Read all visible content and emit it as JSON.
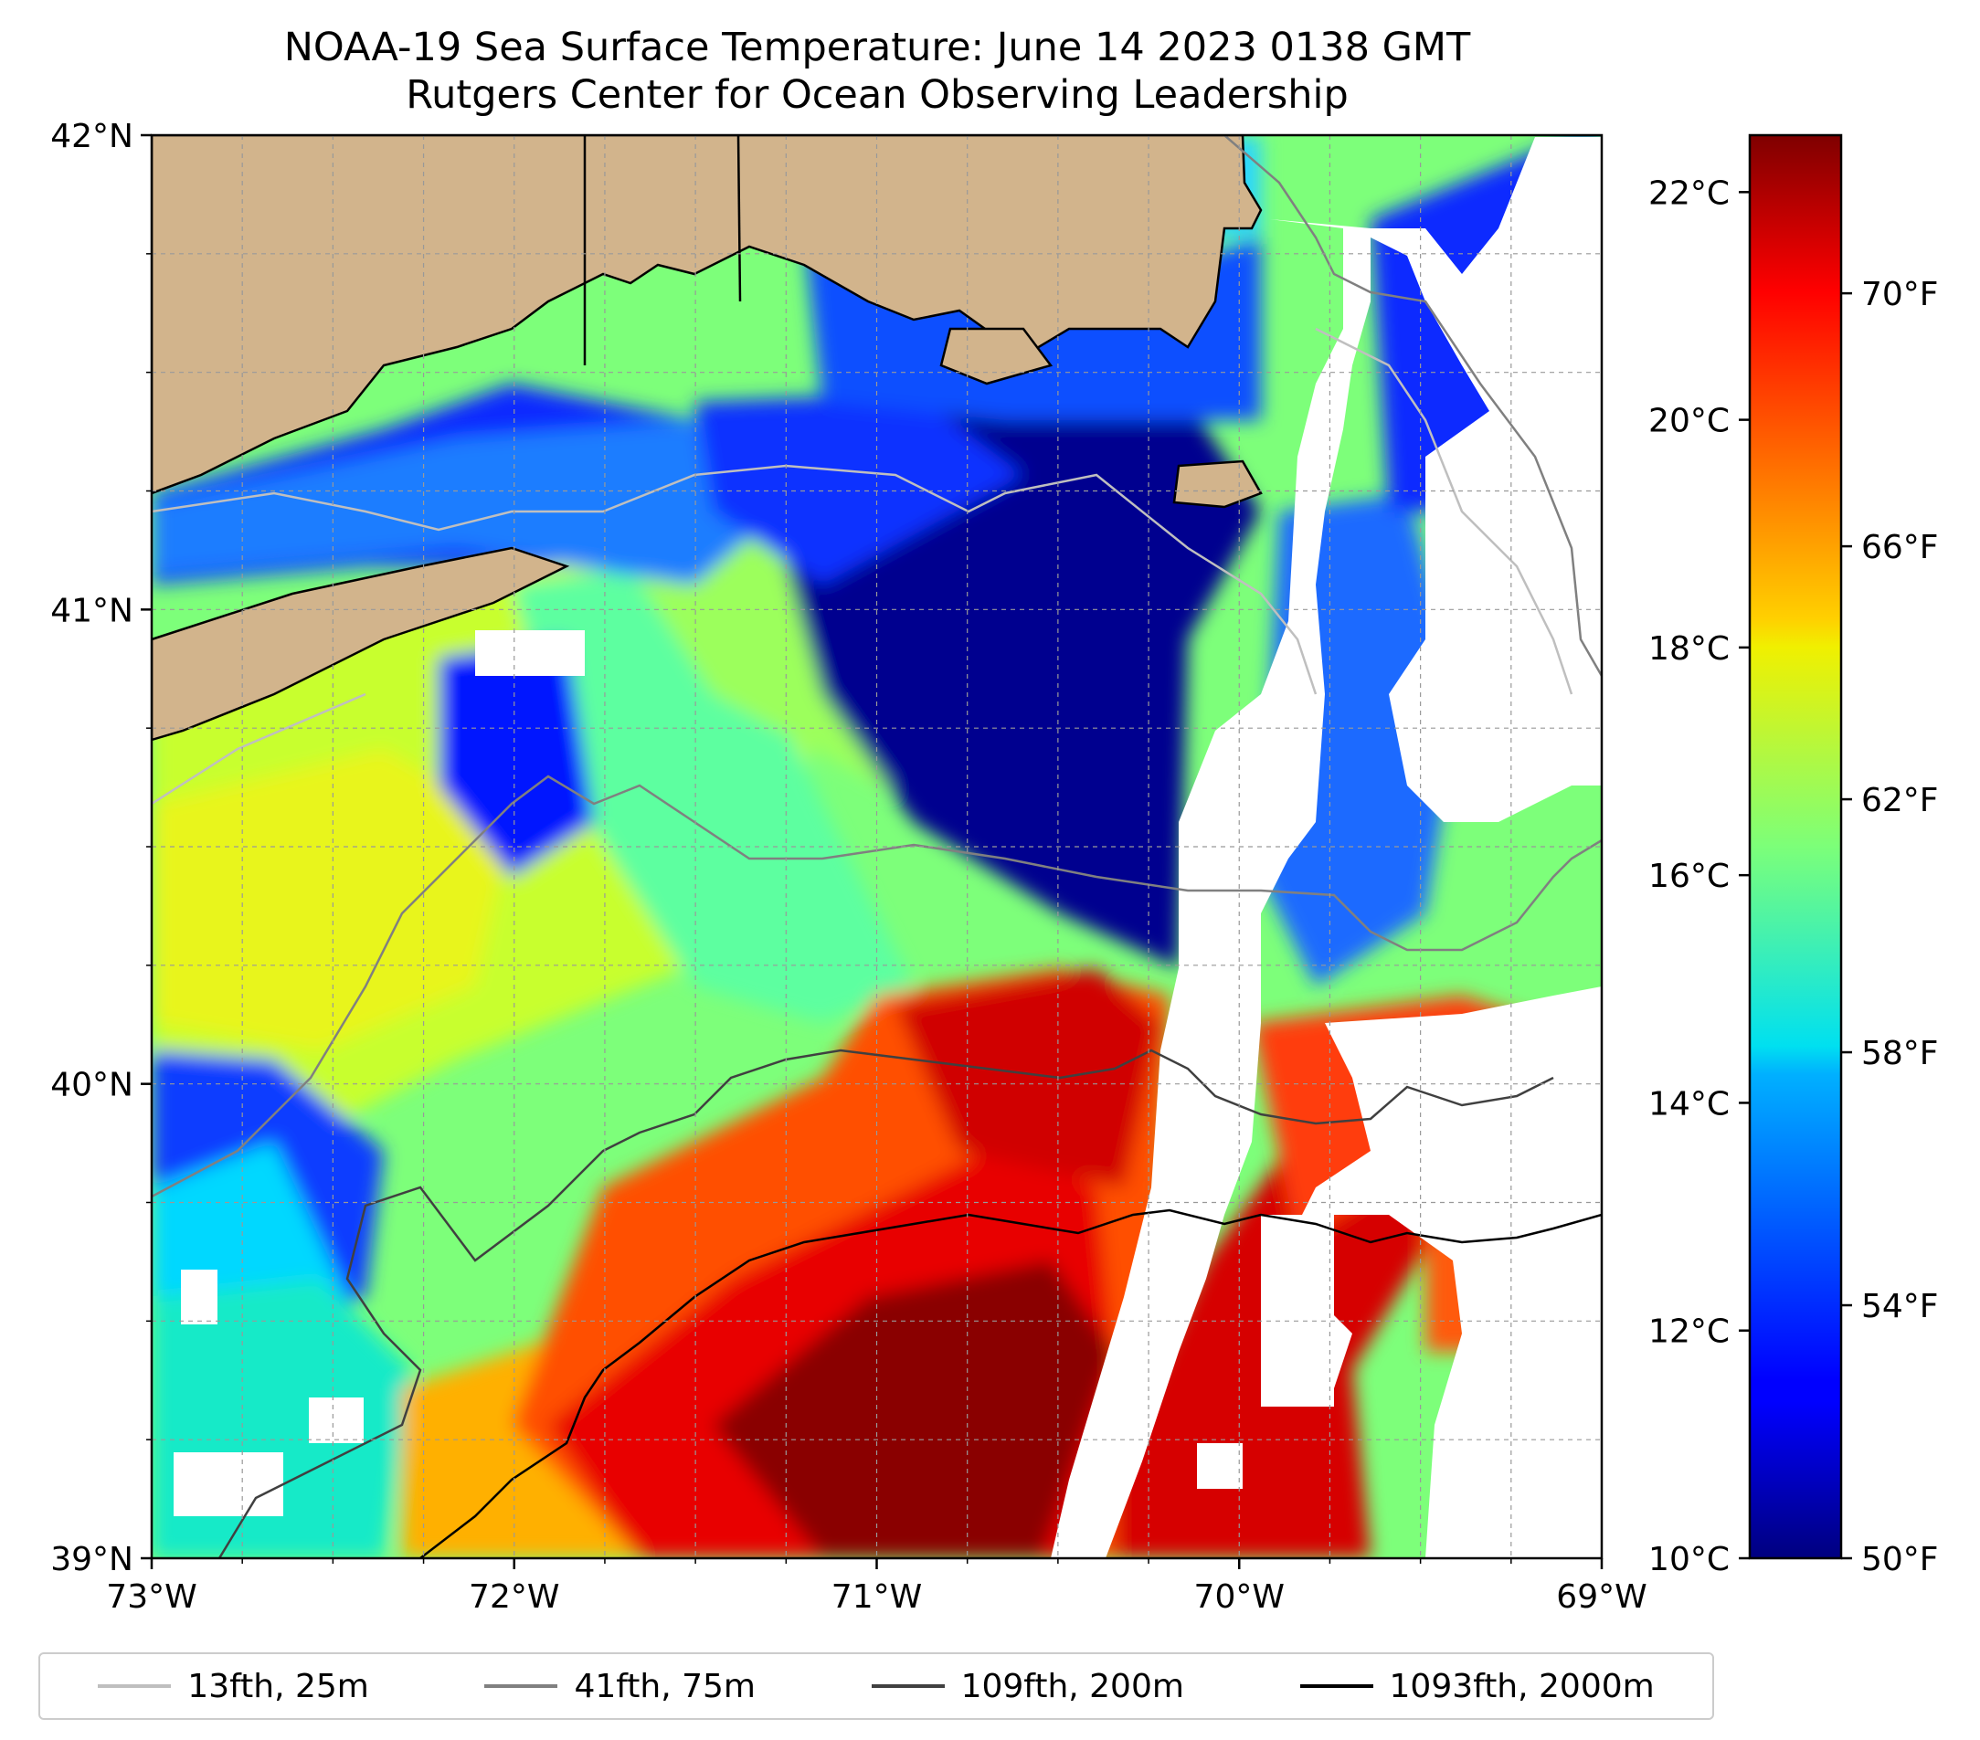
{
  "title": "NOAA-19 Sea Surface Temperature: June 14 2023 0138 GMT",
  "subtitle": "Rutgers Center for Ocean Observing Leadership",
  "map": {
    "lon_range": [
      -73,
      -69
    ],
    "lat_range": [
      39,
      42
    ],
    "lon_ticks": [
      "73°W",
      "72°W",
      "71°W",
      "70°W",
      "69°W"
    ],
    "lat_ticks": [
      "42°N",
      "41°N",
      "40°N",
      "39°N"
    ],
    "land_color": "#d2b48c",
    "no_data_color": "#ffffff"
  },
  "colorbar": {
    "colormap": "jet",
    "celsius_range": [
      10,
      22.5
    ],
    "celsius_ticks": [
      "22°C",
      "20°C",
      "18°C",
      "16°C",
      "14°C",
      "12°C",
      "10°C"
    ],
    "celsius_values": [
      22,
      20,
      18,
      16,
      14,
      12,
      10
    ],
    "fahrenheit_ticks": [
      "70°F",
      "66°F",
      "62°F",
      "58°F",
      "54°F",
      "50°F"
    ],
    "fahrenheit_values": [
      70,
      66,
      62,
      58,
      54,
      50
    ]
  },
  "legend": [
    {
      "label": "13fth, 25m",
      "color": "#bfbfbf"
    },
    {
      "label": "41fth, 75m",
      "color": "#808080"
    },
    {
      "label": "109fth, 200m",
      "color": "#404040"
    },
    {
      "label": "1093fth, 2000m",
      "color": "#000000"
    }
  ]
}
